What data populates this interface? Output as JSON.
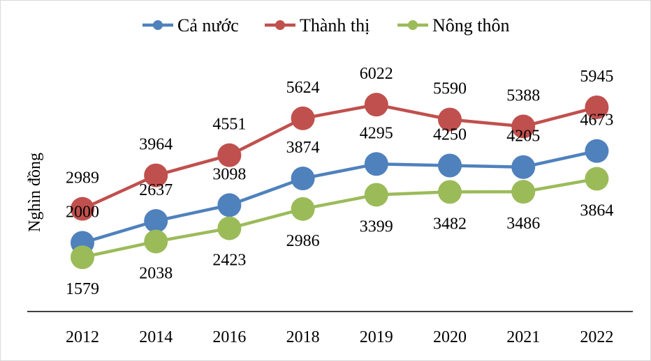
{
  "chart_data": {
    "type": "line",
    "title": "",
    "xlabel": "",
    "ylabel": "Nghìn đồng",
    "categories": [
      "2012",
      "2014",
      "2016",
      "2018",
      "2019",
      "2020",
      "2021",
      "2022"
    ],
    "series": [
      {
        "name": "Cả nước",
        "color": "#4F81BD",
        "values": [
          2000,
          2637,
          3098,
          3874,
          4295,
          4250,
          4205,
          4673
        ],
        "label_position": "above"
      },
      {
        "name": "Thành thị",
        "color": "#C0504D",
        "values": [
          2989,
          3964,
          4551,
          5624,
          6022,
          5590,
          5388,
          5945
        ],
        "label_position": "above"
      },
      {
        "name": "Nông thôn",
        "color": "#9BBB59",
        "values": [
          1579,
          2038,
          2423,
          2986,
          3399,
          3482,
          3486,
          3864
        ],
        "label_position": "below"
      }
    ],
    "ylim": [
      0,
      7000
    ],
    "grid": false,
    "y_tick_labels_shown": false,
    "markers": "circle",
    "data_labels": true,
    "legend_placement": "top"
  }
}
